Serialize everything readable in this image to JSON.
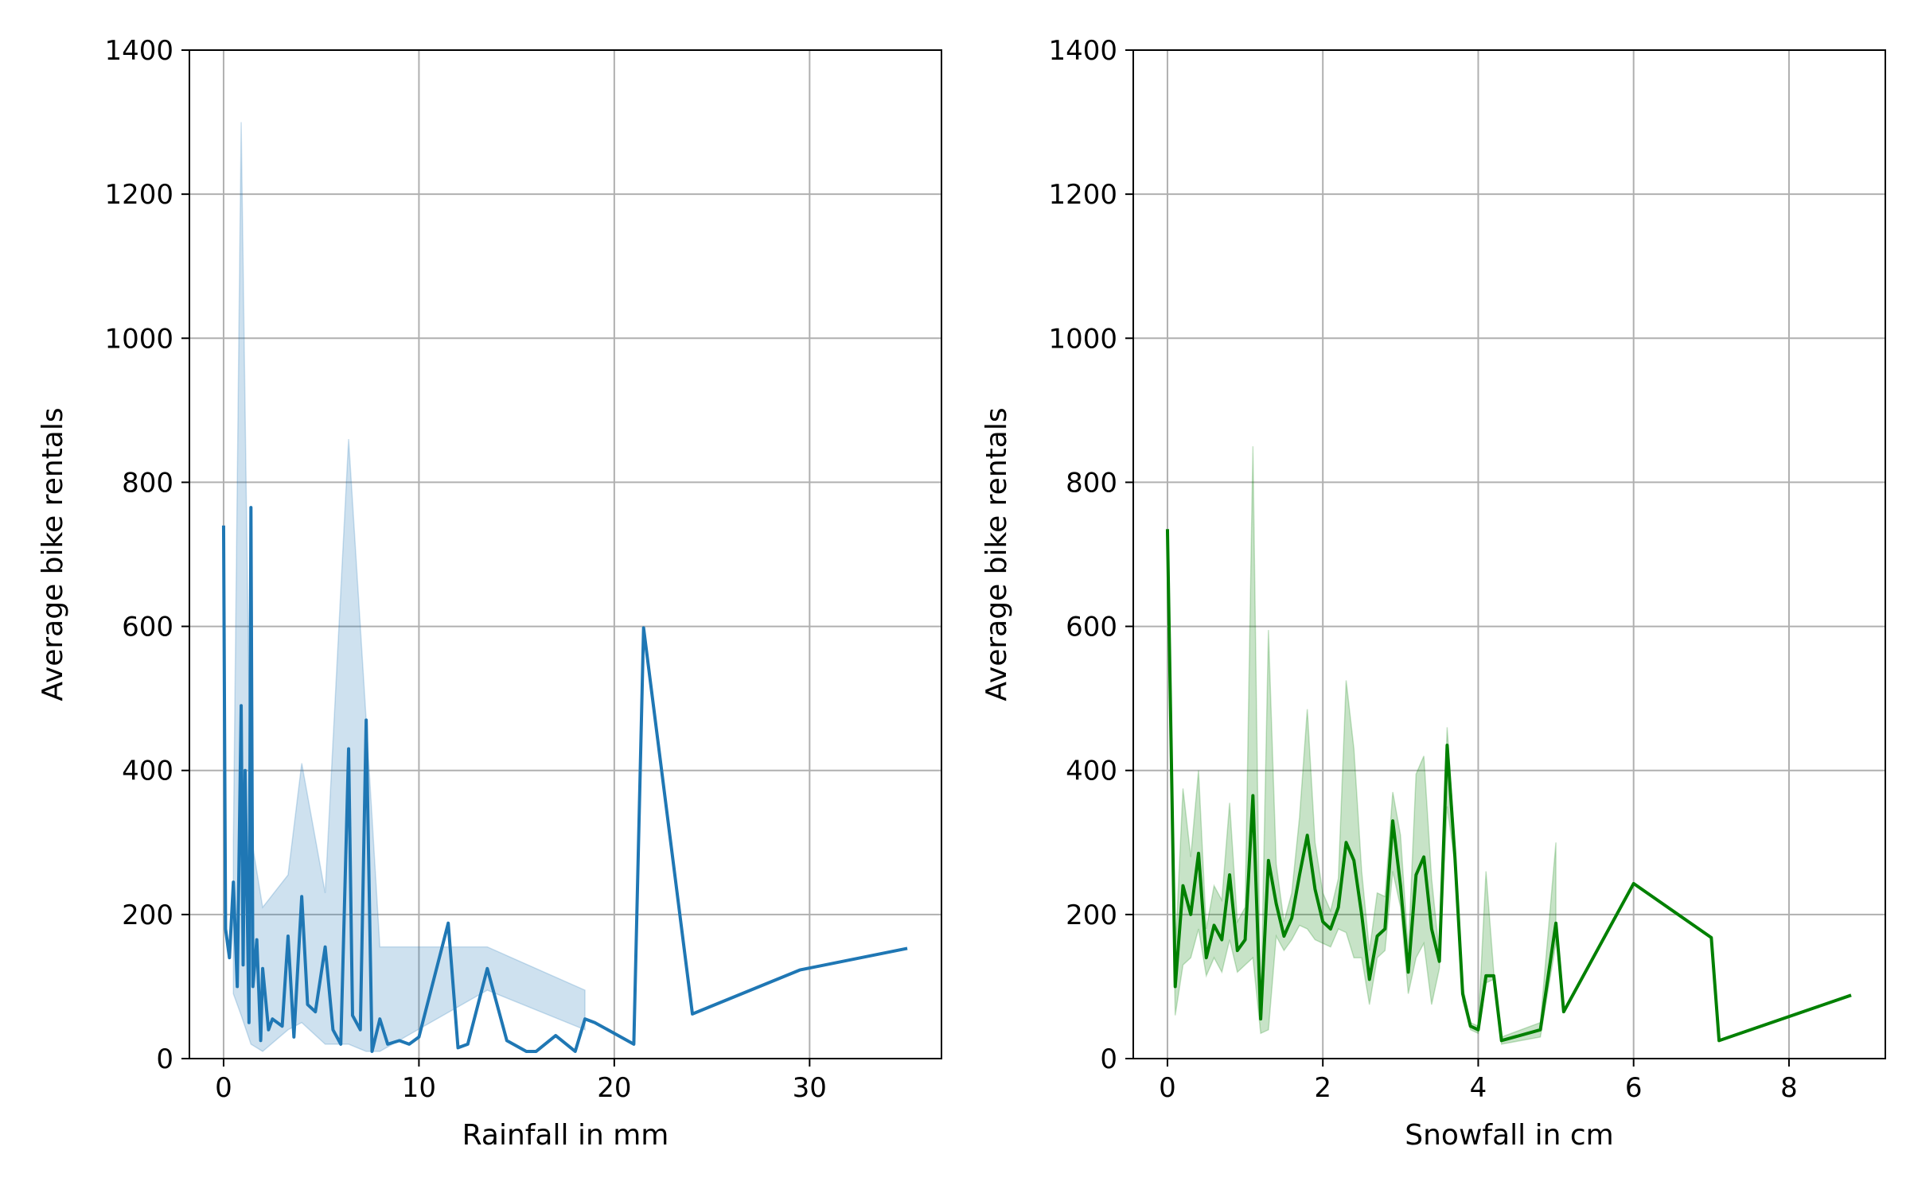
{
  "chart_data": [
    {
      "type": "line",
      "color": "#1f77b4",
      "xlabel": "Rainfall in mm",
      "ylabel": "Average bike rentals",
      "xlim": [
        -1.75,
        36.75
      ],
      "ylim": [
        0,
        1400
      ],
      "xticks": [
        0,
        10,
        20,
        30
      ],
      "yticks": [
        0,
        200,
        400,
        600,
        800,
        1000,
        1200,
        1400
      ],
      "grid": true,
      "series": [
        {
          "x": [
            0,
            0.1,
            0.3,
            0.5,
            0.7,
            0.9,
            1.0,
            1.1,
            1.3,
            1.4,
            1.5,
            1.7,
            1.9,
            2.0,
            2.3,
            2.5,
            3.0,
            3.3,
            3.6,
            4.0,
            4.3,
            4.7,
            5.2,
            5.6,
            6.0,
            6.4,
            6.6,
            7.0,
            7.3,
            7.6,
            8.0,
            8.4,
            9.0,
            9.5,
            10.0,
            11.5,
            12.0,
            12.5,
            13.5,
            14.5,
            15.5,
            16.0,
            17.0,
            18.0,
            18.5,
            19.0,
            21.0,
            21.5,
            24.0,
            29.5,
            35.0
          ],
          "y": [
            740,
            180,
            140,
            245,
            100,
            490,
            130,
            400,
            50,
            765,
            100,
            165,
            25,
            125,
            40,
            55,
            45,
            170,
            30,
            225,
            75,
            65,
            155,
            40,
            20,
            430,
            60,
            40,
            470,
            10,
            55,
            20,
            25,
            20,
            30,
            188,
            15,
            20,
            125,
            25,
            10,
            10,
            32,
            10,
            55,
            50,
            20,
            598,
            62,
            123,
            153
          ],
          "band_x": [
            0.5,
            0.9,
            1.4,
            2.0,
            3.3,
            4.0,
            5.2,
            6.4,
            7.3,
            8.0,
            13.5,
            18.5
          ],
          "band_low": [
            90,
            60,
            20,
            10,
            40,
            50,
            20,
            20,
            10,
            10,
            95,
            40
          ],
          "band_high": [
            300,
            1300,
            310,
            210,
            255,
            410,
            230,
            860,
            470,
            155,
            155,
            95
          ]
        }
      ]
    },
    {
      "type": "line",
      "color": "#008000",
      "xlabel": "Snowfall in cm",
      "ylabel": "Average bike rentals",
      "xlim": [
        -0.44,
        9.24
      ],
      "ylim": [
        0,
        1400
      ],
      "xticks": [
        0,
        2,
        4,
        6,
        8
      ],
      "yticks": [
        0,
        200,
        400,
        600,
        800,
        1000,
        1200,
        1400
      ],
      "grid": true,
      "series": [
        {
          "x": [
            0,
            0.1,
            0.2,
            0.3,
            0.4,
            0.5,
            0.6,
            0.7,
            0.8,
            0.9,
            1.0,
            1.1,
            1.2,
            1.3,
            1.4,
            1.5,
            1.6,
            1.7,
            1.8,
            1.9,
            2.0,
            2.1,
            2.2,
            2.3,
            2.4,
            2.5,
            2.6,
            2.7,
            2.8,
            2.9,
            3.0,
            3.1,
            3.2,
            3.3,
            3.4,
            3.5,
            3.6,
            3.7,
            3.8,
            3.9,
            4.0,
            4.1,
            4.2,
            4.3,
            4.8,
            5.0,
            5.1,
            6.0,
            7.0,
            7.1,
            8.8
          ],
          "y": [
            735,
            100,
            240,
            200,
            285,
            140,
            185,
            165,
            255,
            150,
            165,
            365,
            55,
            275,
            215,
            170,
            195,
            255,
            310,
            235,
            190,
            180,
            210,
            300,
            275,
            200,
            110,
            170,
            180,
            330,
            240,
            120,
            255,
            280,
            180,
            135,
            435,
            280,
            90,
            45,
            40,
            115,
            115,
            25,
            40,
            188,
            65,
            243,
            168,
            25,
            88
          ],
          "band_x": [
            0,
            0.1,
            0.2,
            0.3,
            0.4,
            0.5,
            0.6,
            0.7,
            0.8,
            0.9,
            1.0,
            1.1,
            1.2,
            1.3,
            1.4,
            1.5,
            1.6,
            1.7,
            1.8,
            1.9,
            2.0,
            2.1,
            2.2,
            2.3,
            2.4,
            2.5,
            2.6,
            2.7,
            2.8,
            2.9,
            3.0,
            3.1,
            3.2,
            3.3,
            3.4,
            3.5,
            3.6,
            3.7,
            3.8,
            3.9,
            4.0,
            4.1,
            4.2,
            4.3,
            4.8,
            5.0
          ],
          "band_low": [
            735,
            60,
            130,
            140,
            180,
            115,
            140,
            120,
            165,
            120,
            130,
            140,
            35,
            40,
            170,
            150,
            165,
            185,
            180,
            165,
            160,
            155,
            180,
            175,
            140,
            140,
            75,
            140,
            150,
            260,
            210,
            90,
            140,
            160,
            75,
            125,
            350,
            270,
            80,
            40,
            35,
            105,
            110,
            20,
            30,
            160
          ],
          "band_high": [
            735,
            145,
            375,
            280,
            400,
            180,
            240,
            220,
            355,
            190,
            210,
            850,
            65,
            595,
            270,
            190,
            230,
            335,
            485,
            300,
            230,
            205,
            250,
            525,
            430,
            260,
            150,
            230,
            225,
            370,
            310,
            150,
            395,
            420,
            250,
            145,
            460,
            295,
            100,
            50,
            45,
            260,
            120,
            30,
            50,
            300
          ]
        }
      ]
    }
  ]
}
